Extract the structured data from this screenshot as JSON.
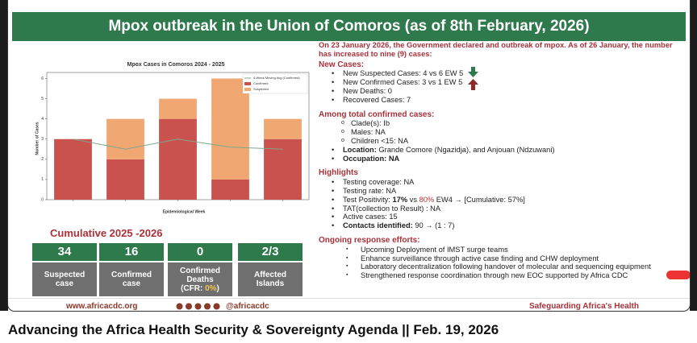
{
  "header": {
    "title": "Mpox outbreak in the Union of Comoros (as of 8th February, 2026)"
  },
  "chart_data": {
    "type": "bar",
    "stacked": true,
    "title": "Mpox Cases in Comoros 2024 - 2025",
    "x_label": "Epidemiological Week",
    "y_label": "Number of Cases",
    "categories": [
      null,
      null,
      null,
      null,
      null
    ],
    "series": [
      {
        "name": "Confirmed",
        "color": "#c9524f",
        "values": [
          3,
          2,
          4,
          1,
          3
        ]
      },
      {
        "name": "Suspected",
        "color": "#f0a772",
        "values": [
          0,
          2,
          1,
          5,
          1
        ]
      },
      {
        "name": "4-Week Moving Avg (Confirmed)",
        "type": "line",
        "color": "#7fa88b",
        "values": [
          3,
          2.5,
          3,
          2.6,
          2.5
        ]
      }
    ],
    "ylim": [
      0,
      6.3
    ],
    "yticks": [
      0,
      1,
      2,
      3,
      4,
      5,
      6
    ],
    "legend": "upper right"
  },
  "cumulative": {
    "title": "Cumulative 2025 -2026",
    "stats": [
      {
        "value": 34,
        "label": "Suspected case"
      },
      {
        "value": 16,
        "label": "Confirmed case"
      },
      {
        "value": 0,
        "label": "Confirmed Deaths",
        "note": [
          "(CFR: ",
          {
            "highlight": "0%"
          },
          ")"
        ]
      },
      {
        "value": "2/3",
        "label": "Affected Islands"
      }
    ]
  },
  "intro": "On 23 January 2026, the Government declared and outbreak of mpox. As of 26 January, the number has increased to nine (9) cases:",
  "sections": [
    {
      "title": "New Cases:",
      "items": [
        [
          "New Suspected Cases: 4 vs 6 EW 5"
        ],
        [
          "New Confirmed Cases: 3  vs 1 EW 5"
        ],
        [
          "New Deaths: 0"
        ],
        [
          "Recovered Cases: 7"
        ]
      ]
    },
    {
      "title": "Among total confirmed cases:",
      "items": [
        [
          "Clade(s): Ib"
        ],
        [
          "Males: NA"
        ],
        [
          "Children <15: NA"
        ],
        [
          {
            "bold": "Location:"
          },
          " Grande Comore (Ngazidja), and Anjouan (Ndzuwani)"
        ],
        [
          {
            "bold": "Occupation: NA"
          }
        ]
      ]
    },
    {
      "title": "Highlights",
      "items": [
        [
          "Testing coverage: NA"
        ],
        [
          "Testing rate: NA"
        ],
        [
          "Test Positivity: ",
          {
            "bold": "17%"
          },
          " vs ",
          {
            "red": "80%"
          },
          " EW4 → [Cumulative: 57%]"
        ],
        [
          "TAT(collection to Result) : NA"
        ],
        [
          "Active cases: 15"
        ],
        [
          {
            "bold": "Contacts identified:"
          },
          " 90 → (1 : 7)"
        ]
      ]
    },
    {
      "title": "Ongoing response efforts:",
      "items": [
        [
          "Upcoming Deployment of IMST surge teams"
        ],
        [
          "Enhance surveillance through active case finding and CHW deployment"
        ],
        [
          "Laboratory decentralization following handover of molecular and sequencing equipment"
        ],
        [
          "Strengthened response coordination through new EOC supported by Africa CDC"
        ]
      ]
    }
  ],
  "footer": {
    "website": "www.africacdc.org",
    "handle": "@africacdc",
    "slogan": "Safeguarding Africa's Health"
  },
  "caption": "Advancing the Africa Health Security & Sovereignty Agenda || Feb. 19, 2026"
}
